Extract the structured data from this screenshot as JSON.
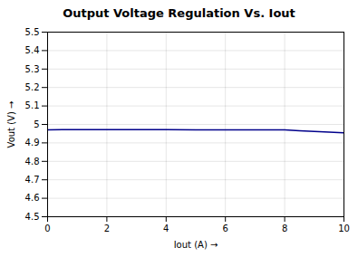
{
  "chart_data": {
    "type": "line",
    "title": "Output Voltage Regulation Vs. Iout",
    "xlabel": "Iout (A)",
    "ylabel": "Vout (V)",
    "x": [
      0,
      0.5,
      1,
      2,
      3,
      4,
      5,
      6,
      7,
      8,
      8.5,
      9,
      9.5,
      10
    ],
    "values": [
      4.971,
      4.972,
      4.972,
      4.972,
      4.972,
      4.972,
      4.971,
      4.971,
      4.971,
      4.97,
      4.966,
      4.962,
      4.958,
      4.955
    ],
    "color": "#00008B",
    "xlim": [
      0,
      10
    ],
    "ylim": [
      4.5,
      5.5
    ],
    "xticks": [
      0,
      2,
      4,
      6,
      8,
      10
    ],
    "yticks": [
      4.5,
      4.6,
      4.7,
      4.8,
      4.9,
      5,
      5.1,
      5.2,
      5.3,
      5.4,
      5.5
    ],
    "grid": true
  }
}
